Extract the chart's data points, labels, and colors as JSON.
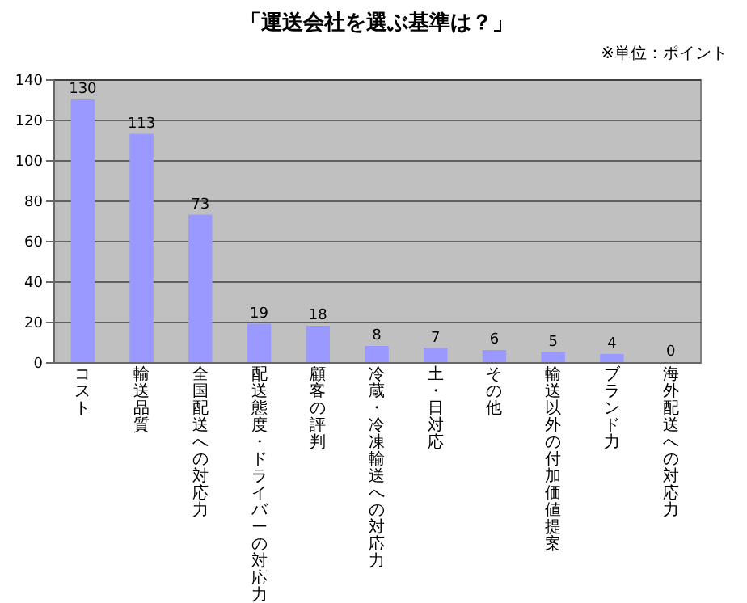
{
  "chart_data": {
    "type": "bar",
    "title": "「運送会社を選ぶ基準は？」",
    "annotations": [
      "※単位：ポイント"
    ],
    "categories": [
      "コスト",
      "輸送品質",
      "全国配送への対応力",
      "配送態度・ドライバーの対応力",
      "顧客の評判",
      "冷蔵・冷凍輸送への対応力",
      "土・日対応",
      "その他",
      "輸送以外の付加価値提案",
      "ブランド力",
      "海外配送への対応力"
    ],
    "values": [
      130,
      113,
      73,
      19,
      18,
      8,
      7,
      6,
      5,
      4,
      0
    ],
    "color": "#9999ff",
    "ylim": [
      0,
      140
    ],
    "yticks": [
      0,
      20,
      40,
      60,
      80,
      100,
      120,
      140
    ],
    "grid": "y",
    "data_labels": true
  }
}
